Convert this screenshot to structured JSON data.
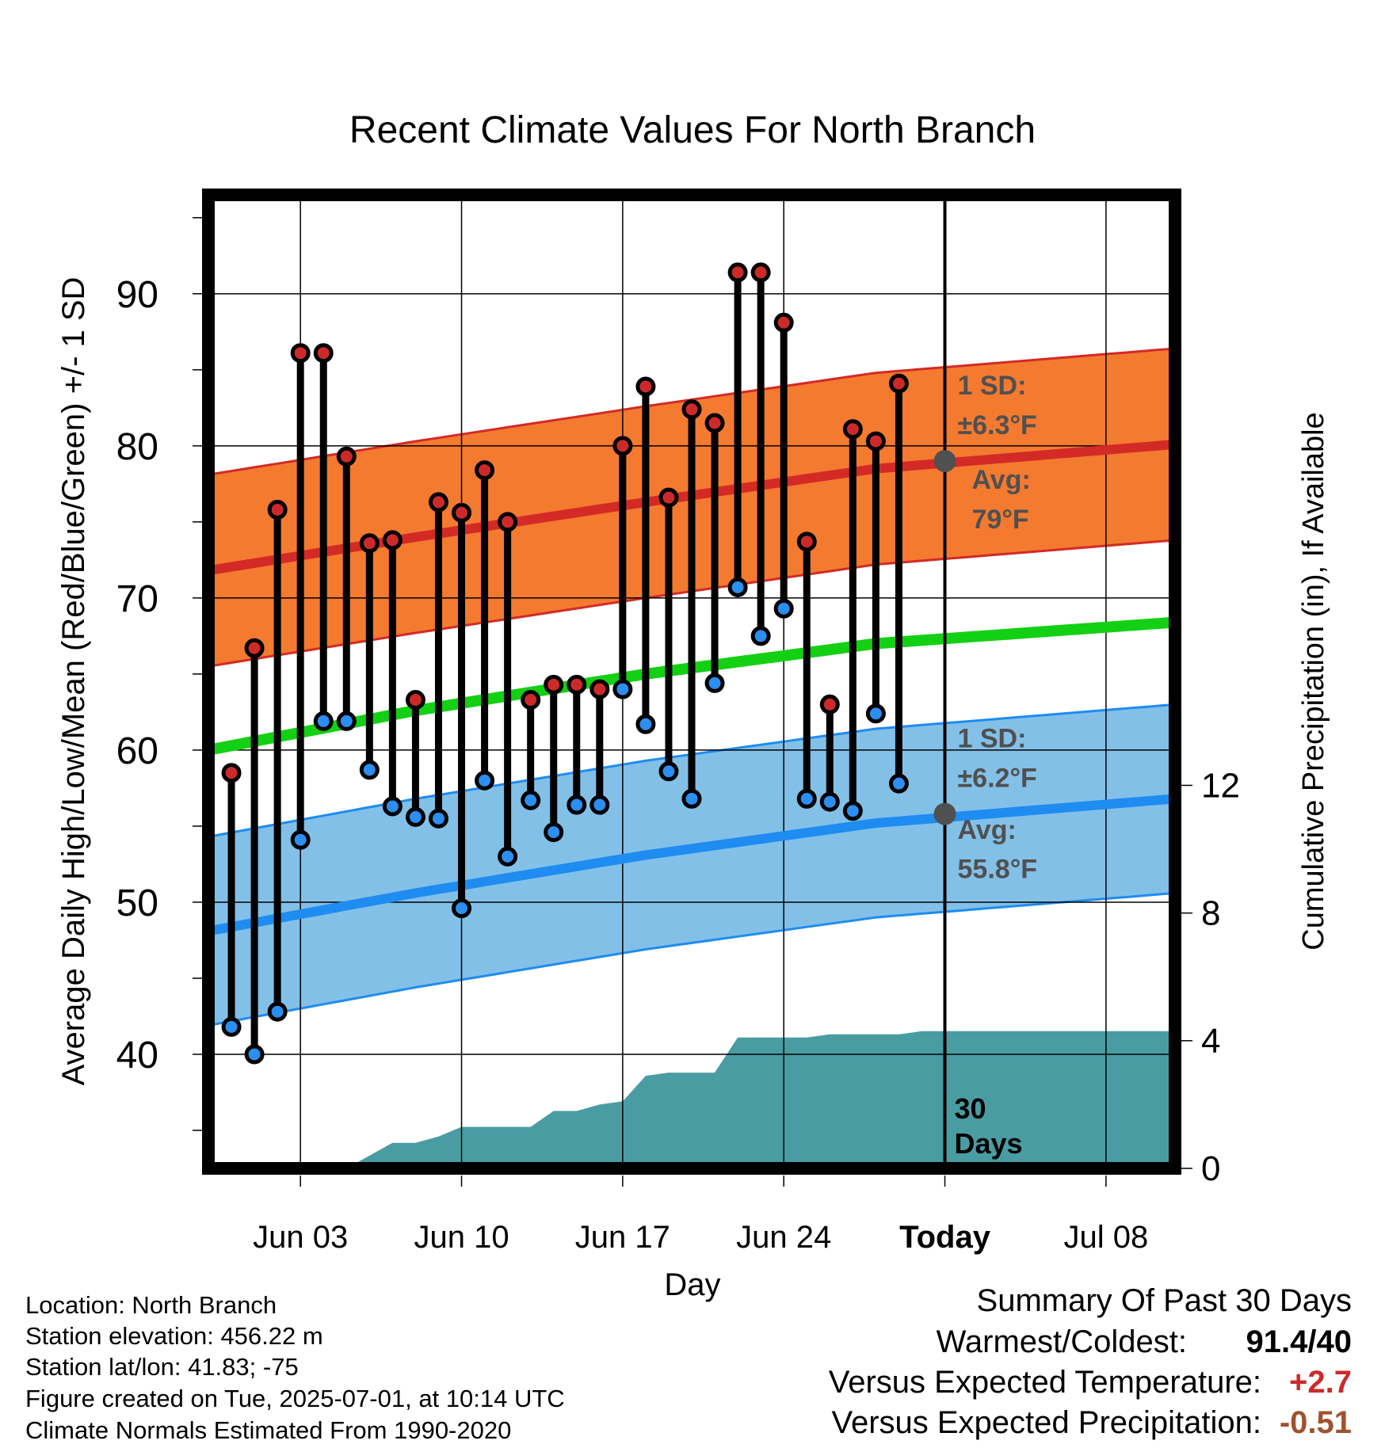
{
  "chart_data": {
    "type": "line",
    "title": "Recent Climate Values For North Branch",
    "xlabel": "Day",
    "ylabel": "Average Daily High/Low/Mean (Red/Blue/Green) +/- 1 SD",
    "y2label": "Cumulative Precipitation (in), If Available",
    "xlim": [
      "2025-05-30",
      "2025-07-11"
    ],
    "ylim": [
      32.5,
      96.5
    ],
    "y2lim": [
      0,
      30.5
    ],
    "x_tick_labels": [
      "Jun 03",
      "Jun 10",
      "Jun 17",
      "Jun 24",
      "Today",
      "Jul 08"
    ],
    "x_ticks": [
      "2025-06-03",
      "2025-06-10",
      "2025-06-17",
      "2025-06-24",
      "2025-07-01",
      "2025-07-08"
    ],
    "y_ticks": [
      40,
      50,
      60,
      70,
      80,
      90
    ],
    "y2_ticks": [
      0,
      4,
      8,
      12
    ],
    "grid": true,
    "today": "2025-07-01",
    "today_label": "30 Days",
    "daily": {
      "dates": [
        "2025-05-31",
        "2025-06-01",
        "2025-06-02",
        "2025-06-03",
        "2025-06-04",
        "2025-06-05",
        "2025-06-06",
        "2025-06-07",
        "2025-06-08",
        "2025-06-09",
        "2025-06-10",
        "2025-06-11",
        "2025-06-12",
        "2025-06-13",
        "2025-06-14",
        "2025-06-15",
        "2025-06-16",
        "2025-06-17",
        "2025-06-18",
        "2025-06-19",
        "2025-06-20",
        "2025-06-21",
        "2025-06-22",
        "2025-06-23",
        "2025-06-24",
        "2025-06-25",
        "2025-06-26",
        "2025-06-27",
        "2025-06-28",
        "2025-06-29",
        "2025-06-30"
      ],
      "high": [
        58.5,
        66.7,
        75.8,
        86.1,
        86.1,
        79.3,
        73.6,
        73.8,
        63.3,
        76.3,
        75.6,
        78.4,
        75.0,
        63.3,
        64.3,
        64.3,
        64.0,
        80.0,
        83.9,
        76.6,
        82.4,
        81.5,
        91.4,
        91.4,
        88.1,
        73.7,
        63.0,
        81.1,
        80.3,
        84.1,
        null
      ],
      "low": [
        41.8,
        40.0,
        42.8,
        54.1,
        61.9,
        61.9,
        58.7,
        56.3,
        55.6,
        55.5,
        49.6,
        58.0,
        53.0,
        56.7,
        54.6,
        56.4,
        56.4,
        64.0,
        61.7,
        58.6,
        56.8,
        64.4,
        70.7,
        67.5,
        69.3,
        56.8,
        56.6,
        56.0,
        62.4,
        57.8,
        null
      ]
    },
    "series": [
      {
        "name": "Avg high",
        "x": [
          "2025-05-30",
          "2025-06-08",
          "2025-06-18",
          "2025-06-28",
          "2025-07-11"
        ],
        "values": [
          71.8,
          74.0,
          76.3,
          78.5,
          80.1
        ],
        "sd": 6.3
      },
      {
        "name": "Avg mean",
        "x": [
          "2025-05-30",
          "2025-06-08",
          "2025-06-18",
          "2025-06-28",
          "2025-07-11"
        ],
        "values": [
          60.0,
          62.6,
          65.0,
          67.0,
          68.4
        ]
      },
      {
        "name": "Avg low",
        "x": [
          "2025-05-30",
          "2025-06-08",
          "2025-06-18",
          "2025-06-28",
          "2025-07-11"
        ],
        "values": [
          48.1,
          50.6,
          53.1,
          55.2,
          56.8
        ],
        "sd": 6.2
      },
      {
        "name": "Cumulative precipitation",
        "axis": "y2",
        "x": [
          "2025-05-30",
          "2025-06-05",
          "2025-06-06",
          "2025-06-07",
          "2025-06-08",
          "2025-06-09",
          "2025-06-10",
          "2025-06-11",
          "2025-06-12",
          "2025-06-13",
          "2025-06-14",
          "2025-06-15",
          "2025-06-16",
          "2025-06-17",
          "2025-06-18",
          "2025-06-19",
          "2025-06-20",
          "2025-06-21",
          "2025-06-22",
          "2025-06-23",
          "2025-06-24",
          "2025-06-25",
          "2025-06-26",
          "2025-06-27",
          "2025-06-28",
          "2025-06-29",
          "2025-06-30",
          "2025-07-01",
          "2025-07-11"
        ],
        "values": [
          0,
          0,
          0.4,
          0.8,
          0.8,
          1.0,
          1.3,
          1.3,
          1.3,
          1.3,
          1.8,
          1.8,
          2.0,
          2.1,
          2.9,
          3.0,
          3.0,
          3.0,
          4.1,
          4.1,
          4.1,
          4.1,
          4.2,
          4.2,
          4.2,
          4.2,
          4.3,
          4.3,
          4.3
        ]
      }
    ],
    "annotations": {
      "high_sd_label": "1 SD:",
      "high_sd_value": "±6.3°F",
      "high_avg_label": "Avg:",
      "high_avg_value": "79°F",
      "low_sd_label": "1 SD:",
      "low_sd_value": "±6.2°F",
      "low_avg_label": "Avg:",
      "low_avg_value": "55.8°F",
      "high_avg_point": 79.0,
      "low_avg_point": 55.8
    },
    "colors": {
      "high_band": "#f47a30",
      "high_line": "#d42a25",
      "high_dot": "#cc2a2a",
      "mean_line": "#14d014",
      "low_band": "#83c0e8",
      "low_line": "#1e8cf0",
      "low_dot": "#2b8ef0",
      "precip": "#4a9ca3",
      "avg_point": "#505050",
      "annotation_text": "#505050"
    }
  },
  "info": {
    "location": "Location: North Branch",
    "elevation": "Station elevation: 456.22 m",
    "latlon": "Station lat/lon: 41.83; -75",
    "created": "Figure created on Tue, 2025-07-01, at 10:14 UTC",
    "normals": "Climate Normals Estimated From 1990-2020"
  },
  "summary": {
    "title": "Summary Of Past 30 Days",
    "warmest_coldest_label": "Warmest/Coldest:",
    "warmest_coldest_value": "91.4/40",
    "temp_label": "Versus Expected Temperature:",
    "temp_value": "+2.7",
    "temp_color": "#cc2a2a",
    "precip_label": "Versus Expected Precipitation:",
    "precip_value": "-0.51",
    "precip_color": "#a0522d"
  }
}
